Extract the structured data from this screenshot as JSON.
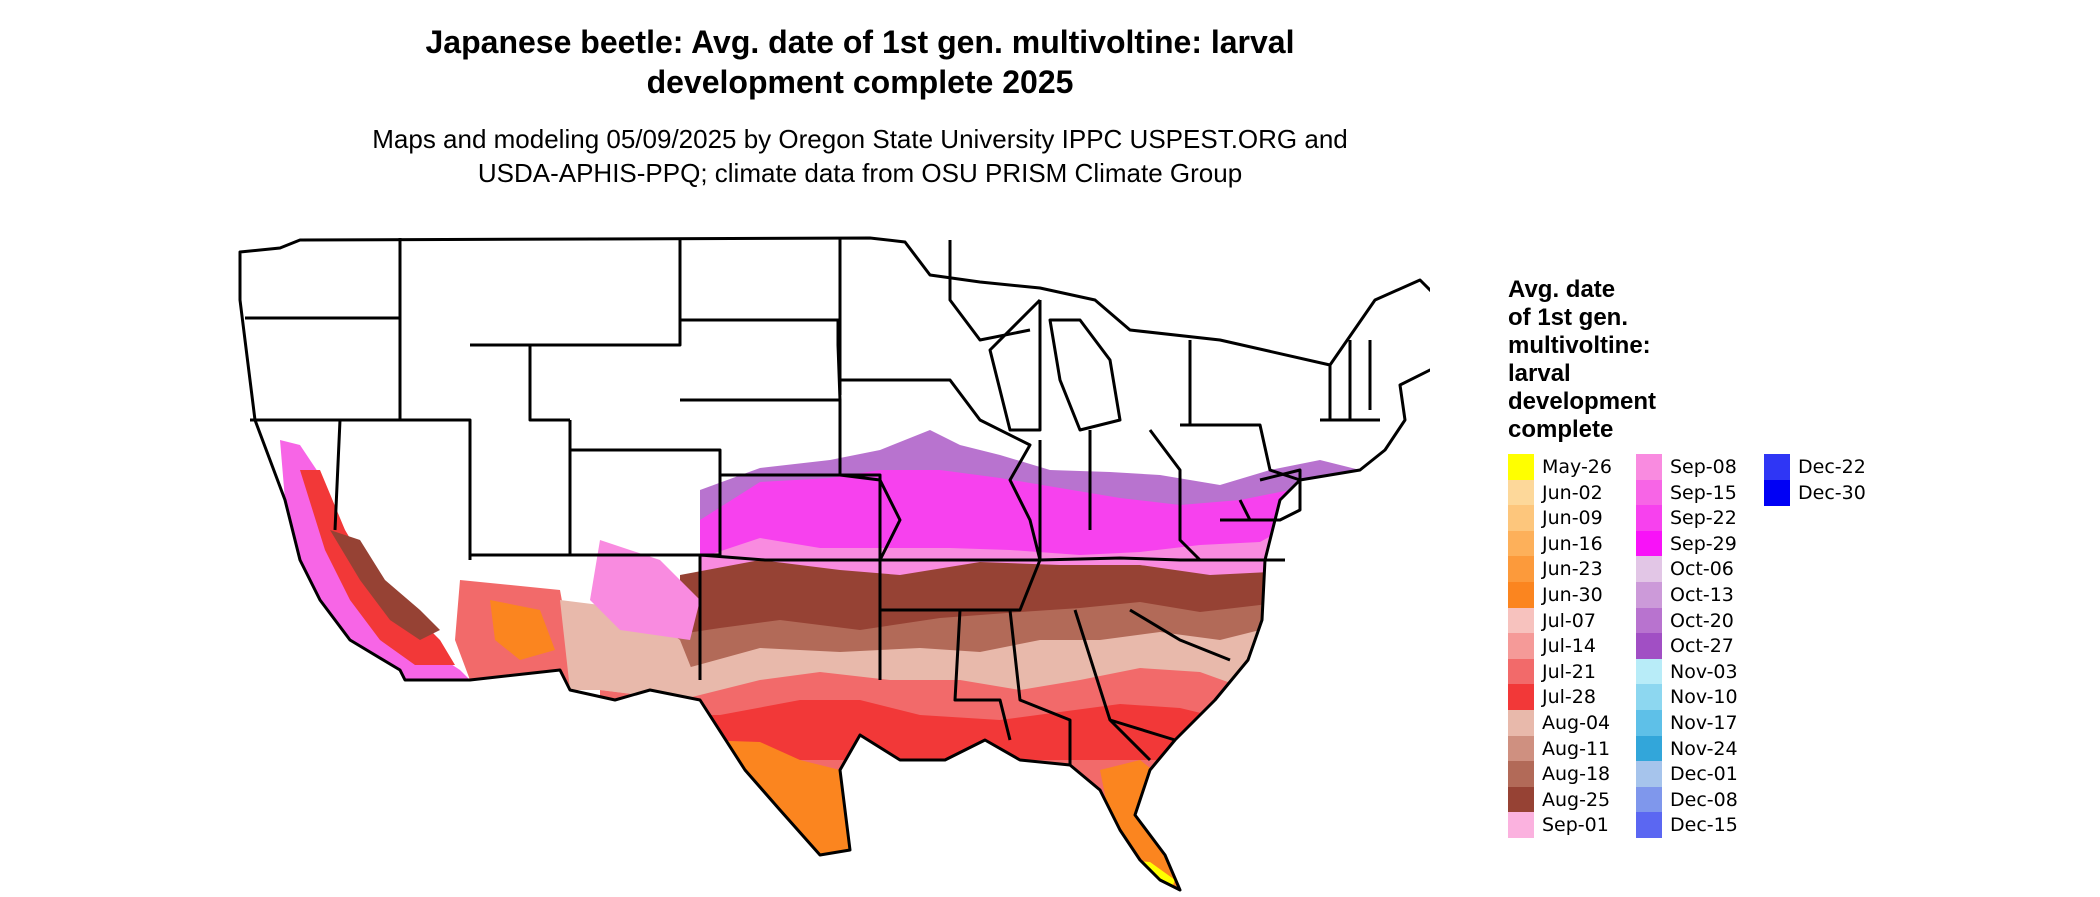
{
  "title_line1": "Japanese beetle: Avg. date of 1st gen. multivoltine: larval",
  "title_line2": "development complete 2025",
  "subtitle_line1": "Maps and modeling 05/09/2025 by Oregon State University IPPC USPEST.ORG and",
  "subtitle_line2": "USDA-APHIS-PPQ; climate data from OSU PRISM Climate Group",
  "legend": {
    "title": "Avg. date\nof 1st gen.\nmultivoltine:\nlarval\ndevelopment\ncomplete",
    "items": [
      {
        "label": "May-26",
        "color": "#ffff00"
      },
      {
        "label": "Jun-02",
        "color": "#fdd89a"
      },
      {
        "label": "Jun-09",
        "color": "#fdc67c"
      },
      {
        "label": "Jun-16",
        "color": "#fdb05a"
      },
      {
        "label": "Jun-23",
        "color": "#fc9a3b"
      },
      {
        "label": "Jun-30",
        "color": "#fb851f"
      },
      {
        "label": "Jul-07",
        "color": "#f7c2be"
      },
      {
        "label": "Jul-14",
        "color": "#f59a98"
      },
      {
        "label": "Jul-21",
        "color": "#f26a6a"
      },
      {
        "label": "Jul-28",
        "color": "#f23838"
      },
      {
        "label": "Aug-04",
        "color": "#e8b9ab"
      },
      {
        "label": "Aug-11",
        "color": "#cf9080"
      },
      {
        "label": "Aug-18",
        "color": "#b26a58"
      },
      {
        "label": "Aug-25",
        "color": "#964234"
      },
      {
        "label": "Sep-01",
        "color": "#fbb2df"
      },
      {
        "label": "Sep-08",
        "color": "#f98be0"
      },
      {
        "label": "Sep-15",
        "color": "#f765e6"
      },
      {
        "label": "Sep-22",
        "color": "#f741ee"
      },
      {
        "label": "Sep-29",
        "color": "#f812f8"
      },
      {
        "label": "Oct-06",
        "color": "#e2c6e6"
      },
      {
        "label": "Oct-13",
        "color": "#cc9ad9"
      },
      {
        "label": "Oct-20",
        "color": "#b873cf"
      },
      {
        "label": "Oct-27",
        "color": "#a14fc4"
      },
      {
        "label": "Nov-03",
        "color": "#b8ecf8"
      },
      {
        "label": "Nov-10",
        "color": "#8dd7f0"
      },
      {
        "label": "Nov-17",
        "color": "#5ec0e8"
      },
      {
        "label": "Nov-24",
        "color": "#32a6da"
      },
      {
        "label": "Dec-01",
        "color": "#a6c4ec"
      },
      {
        "label": "Dec-08",
        "color": "#7f97ec"
      },
      {
        "label": "Dec-15",
        "color": "#5b67f2"
      },
      {
        "label": "Dec-22",
        "color": "#2f36f5"
      },
      {
        "label": "Dec-30",
        "color": "#0000f5"
      }
    ]
  },
  "map": {
    "outline_color": "#000000",
    "unshaded_color": "#ffffff"
  }
}
